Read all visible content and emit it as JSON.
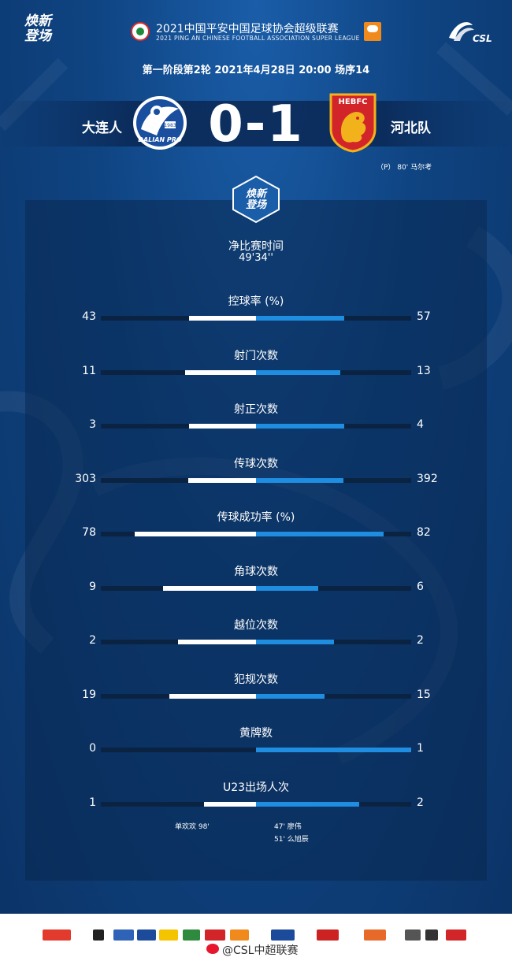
{
  "header": {
    "brand": [
      "焕新",
      "登场"
    ],
    "league_title": "2021中国平安中国足球协会超级联赛",
    "league_subtitle": "2021 PING AN CHINESE FOOTBALL ASSOCIATION SUPER LEAGUE",
    "csl_text": "CSL",
    "round_info": "第一阶段第2轮  2021年4月28日 20:00 场序14"
  },
  "match": {
    "home_team": "大连人",
    "away_team": "河北队",
    "score": "0-1",
    "home_crest_text": "DALIAN PRO",
    "home_crest_year": "1983",
    "away_crest_text": "HEBFC",
    "scorer": "（P） 80'  马尔考"
  },
  "panel_badge": [
    "焕新",
    "登场"
  ],
  "net_time": {
    "label": "净比赛时间",
    "value": "49'34''"
  },
  "stats": [
    {
      "label": "控球率 (%)",
      "home": "43",
      "away": "57",
      "home_frac": 0.43,
      "away_frac": 0.57
    },
    {
      "label": "射门次数",
      "home": "11",
      "away": "13",
      "home_frac": 0.458,
      "away_frac": 0.542
    },
    {
      "label": "射正次数",
      "home": "3",
      "away": "4",
      "home_frac": 0.429,
      "away_frac": 0.571
    },
    {
      "label": "传球次数",
      "home": "303",
      "away": "392",
      "home_frac": 0.436,
      "away_frac": 0.564
    },
    {
      "label": "传球成功率 (%)",
      "home": "78",
      "away": "82",
      "home_frac": 0.78,
      "away_frac": 0.82
    },
    {
      "label": "角球次数",
      "home": "9",
      "away": "6",
      "home_frac": 0.6,
      "away_frac": 0.4
    },
    {
      "label": "越位次数",
      "home": "2",
      "away": "2",
      "home_frac": 0.5,
      "away_frac": 0.5
    },
    {
      "label": "犯规次数",
      "home": "19",
      "away": "15",
      "home_frac": 0.559,
      "away_frac": 0.441
    },
    {
      "label": "黄牌数",
      "home": "0",
      "away": "1",
      "home_frac": 0.0,
      "away_frac": 1.0
    },
    {
      "label": "U23出场人次",
      "home": "1",
      "away": "2",
      "home_frac": 0.333,
      "away_frac": 0.667
    }
  ],
  "u23_notes": {
    "home": "单欢欢  98'",
    "away": [
      "47'  廖伟",
      "51'  么旭辰"
    ]
  },
  "footer": {
    "weibo": "@CSL中超联赛"
  },
  "colors": {
    "home_bar": "#ffffff",
    "away_bar": "#1f8de0",
    "background": "#0f4482"
  }
}
